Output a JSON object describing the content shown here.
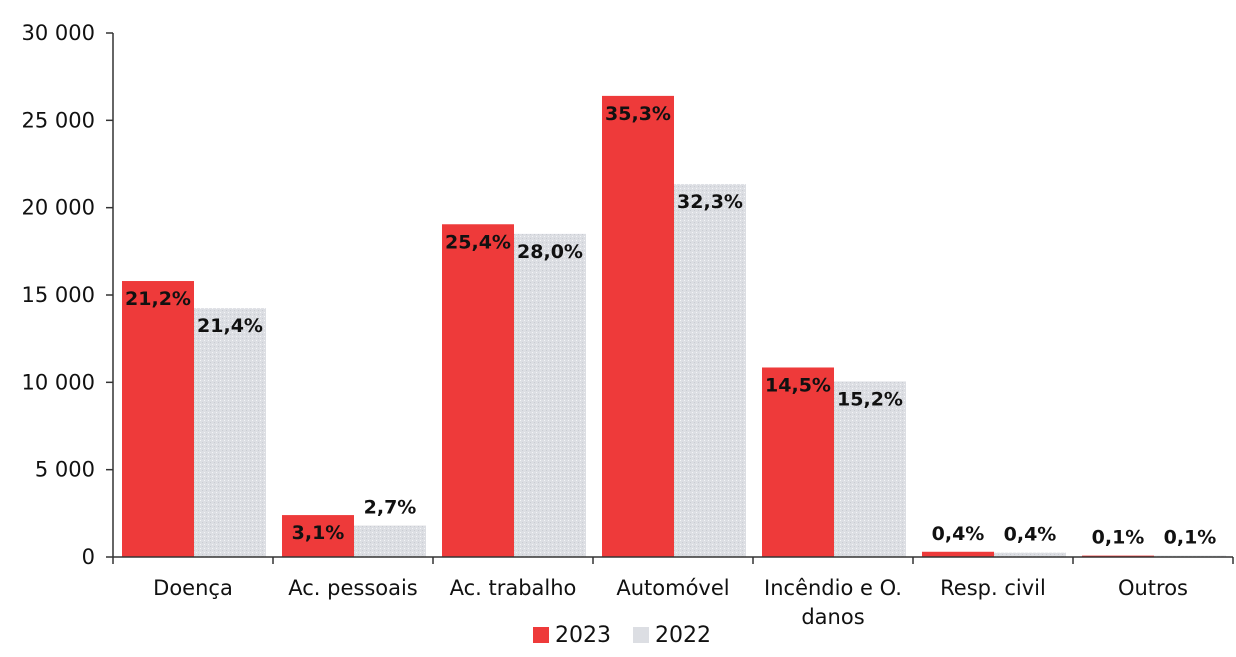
{
  "chart_data": {
    "type": "bar",
    "categories": [
      "Doença",
      "Ac. pessoais",
      "Ac. trabalho",
      "Automóvel",
      "Incêndio e O. danos",
      "Resp. civil",
      "Outros"
    ],
    "series": [
      {
        "name": "2023",
        "color": "#ee3a3a",
        "values": [
          15800,
          2400,
          19050,
          26400,
          10850,
          300,
          80
        ],
        "labels": [
          "21,2%",
          "3,1%",
          "25,4%",
          "35,3%",
          "14,5%",
          "0,4%",
          "0,1%"
        ]
      },
      {
        "name": "2022",
        "color": "#dcdee3",
        "values": [
          14250,
          1800,
          18500,
          21350,
          10050,
          250,
          80
        ],
        "labels": [
          "21,4%",
          "2,7%",
          "28,0%",
          "32,3%",
          "15,2%",
          "0,4%",
          "0,1%"
        ]
      }
    ],
    "ylim": [
      0,
      30000
    ],
    "yticks": [
      0,
      5000,
      10000,
      15000,
      20000,
      25000,
      30000
    ],
    "ytick_labels": [
      "0",
      "5 000",
      "10 000",
      "15 000",
      "20 000",
      "25 000",
      "30 000"
    ],
    "grid": false,
    "legend_position": "bottom-center"
  }
}
